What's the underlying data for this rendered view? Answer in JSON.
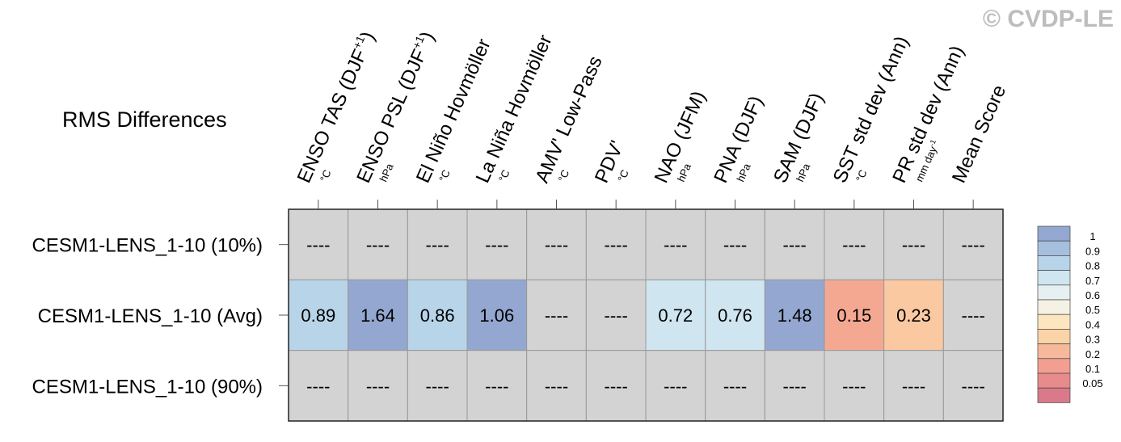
{
  "watermark": "© CVDP-LE",
  "title": "RMS Differences",
  "columns": [
    {
      "name": "ENSO TAS (DJF",
      "name_sup": "+1",
      "name_end": ")",
      "unit": "°C"
    },
    {
      "name": "ENSO PSL (DJF",
      "name_sup": "+1",
      "name_end": ")",
      "unit": "hPa"
    },
    {
      "name": "El Niño Hovmöller",
      "unit": "°C"
    },
    {
      "name": "La Niña Hovmöller",
      "unit": "°C"
    },
    {
      "name": "AMV' Low-Pass",
      "unit": "°C"
    },
    {
      "name": "PDV'",
      "unit": "°C"
    },
    {
      "name": "NAO (JFM)",
      "unit": "hPa"
    },
    {
      "name": "PNA (DJF)",
      "unit": "hPa"
    },
    {
      "name": "SAM (DJF)",
      "unit": "hPa"
    },
    {
      "name": "SST std dev (Ann)",
      "unit": "°C"
    },
    {
      "name": "PR std dev (Ann)",
      "unit": "mm day",
      "unit_sup": "-1"
    },
    {
      "name": "Mean Score"
    }
  ],
  "rows": [
    {
      "label": "CESM1-LENS_1-10 (10%)",
      "cells": [
        {
          "text": "----",
          "color": "#d3d3d3"
        },
        {
          "text": "----",
          "color": "#d3d3d3"
        },
        {
          "text": "----",
          "color": "#d3d3d3"
        },
        {
          "text": "----",
          "color": "#d3d3d3"
        },
        {
          "text": "----",
          "color": "#d3d3d3"
        },
        {
          "text": "----",
          "color": "#d3d3d3"
        },
        {
          "text": "----",
          "color": "#d3d3d3"
        },
        {
          "text": "----",
          "color": "#d3d3d3"
        },
        {
          "text": "----",
          "color": "#d3d3d3"
        },
        {
          "text": "----",
          "color": "#d3d3d3"
        },
        {
          "text": "----",
          "color": "#d3d3d3"
        },
        {
          "text": "----",
          "color": "#d3d3d3"
        }
      ]
    },
    {
      "label": "CESM1-LENS_1-10 (Avg)",
      "cells": [
        {
          "text": "0.89",
          "color": "#b8d4e8"
        },
        {
          "text": "1.64",
          "color": "#93a7d0"
        },
        {
          "text": "0.86",
          "color": "#b8d4e8"
        },
        {
          "text": "1.06",
          "color": "#93a7d0"
        },
        {
          "text": "----",
          "color": "#d3d3d3"
        },
        {
          "text": "----",
          "color": "#d3d3d3"
        },
        {
          "text": "0.72",
          "color": "#cfe5ef"
        },
        {
          "text": "0.76",
          "color": "#cfe5ef"
        },
        {
          "text": "1.48",
          "color": "#93a7d0"
        },
        {
          "text": "0.15",
          "color": "#f4a892"
        },
        {
          "text": "0.23",
          "color": "#fac9a2"
        },
        {
          "text": "----",
          "color": "#d3d3d3"
        }
      ]
    },
    {
      "label": "CESM1-LENS_1-10 (90%)",
      "cells": [
        {
          "text": "----",
          "color": "#d3d3d3"
        },
        {
          "text": "----",
          "color": "#d3d3d3"
        },
        {
          "text": "----",
          "color": "#d3d3d3"
        },
        {
          "text": "----",
          "color": "#d3d3d3"
        },
        {
          "text": "----",
          "color": "#d3d3d3"
        },
        {
          "text": "----",
          "color": "#d3d3d3"
        },
        {
          "text": "----",
          "color": "#d3d3d3"
        },
        {
          "text": "----",
          "color": "#d3d3d3"
        },
        {
          "text": "----",
          "color": "#d3d3d3"
        },
        {
          "text": "----",
          "color": "#d3d3d3"
        },
        {
          "text": "----",
          "color": "#d3d3d3"
        },
        {
          "text": "----",
          "color": "#d3d3d3"
        }
      ]
    }
  ],
  "legend": {
    "colors": [
      "#93a7d0",
      "#a6bfdf",
      "#b8d4e8",
      "#cfe5ef",
      "#e6eff2",
      "#f5f1e4",
      "#fbe6bf",
      "#fad3a6",
      "#f6b99b",
      "#f29f91",
      "#e88b8c",
      "#d9798a"
    ],
    "labels": [
      "1",
      "0.9",
      "0.8",
      "0.7",
      "0.6",
      "0.5",
      "0.4",
      "0.3",
      "0.2",
      "0.1",
      "0.05"
    ]
  }
}
